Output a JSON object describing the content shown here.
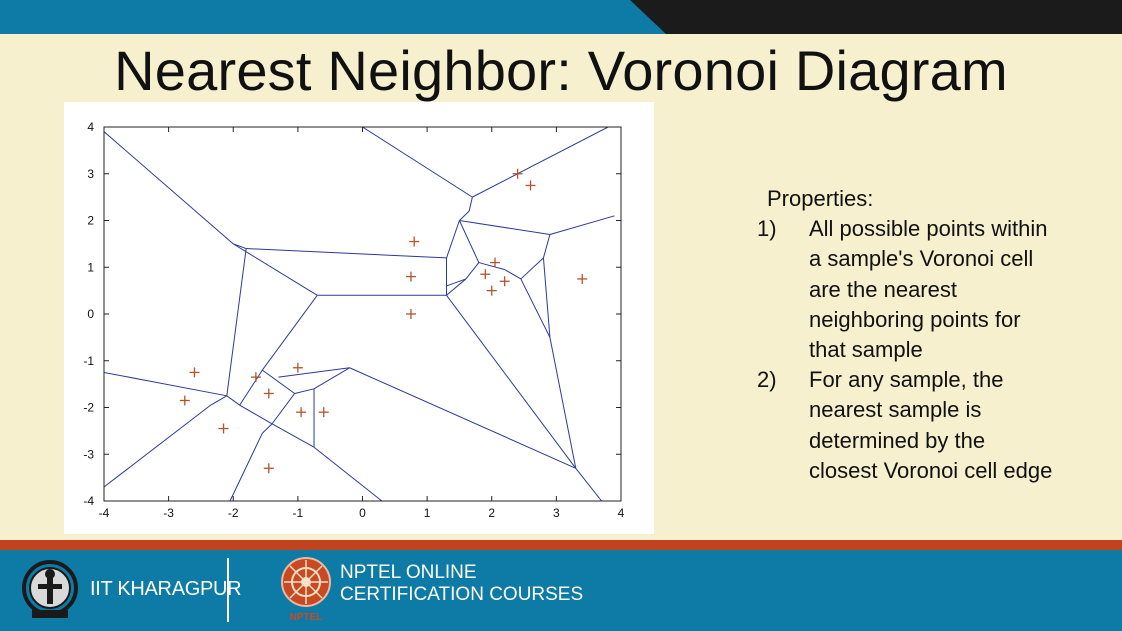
{
  "slide": {
    "title": "Nearest Neighbor: Voronoi Diagram",
    "colors": {
      "top_bar": "#0e7aa6",
      "top_dark": "#1b1b1b",
      "background": "#f6f0cf",
      "bottom_red": "#c0431e",
      "bottom_bar": "#0e7aa6",
      "voronoi_edge": "#2b3a9a",
      "sample_marker": "#b5532a"
    }
  },
  "properties": {
    "heading": "Properties:",
    "items": [
      {
        "num": "1)",
        "text": "All possible points within a sample's Voronoi cell are the nearest neighboring points for that sample"
      },
      {
        "num": "2)",
        "text": "For any sample, the nearest sample is determined by the closest Voronoi cell edge"
      }
    ]
  },
  "footer": {
    "left_label": "IIT KHARAGPUR",
    "right_line1": "NPTEL ONLINE",
    "right_line2": "CERTIFICATION COURSES",
    "right_logo_label": "NPTEL",
    "logo_icons": [
      "iit-kharagpur-emblem-icon",
      "nptel-logo-icon"
    ]
  },
  "chart_data": {
    "type": "scatter",
    "xlim": [
      -4,
      4
    ],
    "ylim": [
      -4,
      4
    ],
    "xticks": [
      "-4",
      "-3",
      "-2",
      "-1",
      "0",
      "1",
      "2",
      "3",
      "4"
    ],
    "yticks": [
      "4",
      "3",
      "2",
      "1",
      "0",
      "-1",
      "-2",
      "-3",
      "-4"
    ],
    "grid": false,
    "marker": "+",
    "points": [
      [
        2.4,
        3.0
      ],
      [
        2.6,
        2.75
      ],
      [
        0.8,
        1.55
      ],
      [
        2.05,
        1.1
      ],
      [
        1.9,
        0.85
      ],
      [
        2.2,
        0.7
      ],
      [
        2.0,
        0.5
      ],
      [
        0.75,
        0.8
      ],
      [
        3.4,
        0.75
      ],
      [
        0.75,
        0.0
      ],
      [
        -2.6,
        -1.25
      ],
      [
        -1.65,
        -1.35
      ],
      [
        -1.0,
        -1.15
      ],
      [
        -2.75,
        -1.85
      ],
      [
        -1.45,
        -1.7
      ],
      [
        -0.95,
        -2.1
      ],
      [
        -0.6,
        -2.1
      ],
      [
        -2.15,
        -2.45
      ],
      [
        -1.45,
        -3.3
      ]
    ],
    "edges": [
      [
        -4.0,
        3.9,
        -2.0,
        1.5
      ],
      [
        -2.0,
        1.5,
        -1.8,
        1.4
      ],
      [
        -1.8,
        1.4,
        1.3,
        1.2
      ],
      [
        -2.0,
        1.5,
        -0.7,
        0.4
      ],
      [
        -0.7,
        0.4,
        1.3,
        0.4
      ],
      [
        1.3,
        0.4,
        1.3,
        1.2
      ],
      [
        1.3,
        1.2,
        1.5,
        2.0
      ],
      [
        1.5,
        2.0,
        1.65,
        2.2
      ],
      [
        1.65,
        2.2,
        1.7,
        2.5
      ],
      [
        1.7,
        2.5,
        0.0,
        4.0
      ],
      [
        1.7,
        2.5,
        3.8,
        4.0
      ],
      [
        1.5,
        2.0,
        2.9,
        1.7
      ],
      [
        2.9,
        1.7,
        3.9,
        2.1
      ],
      [
        2.9,
        1.7,
        2.8,
        1.2
      ],
      [
        2.8,
        1.2,
        2.45,
        0.75
      ],
      [
        2.45,
        0.75,
        2.2,
        0.95
      ],
      [
        2.2,
        0.95,
        1.8,
        1.1
      ],
      [
        1.8,
        1.1,
        1.5,
        2.0
      ],
      [
        1.8,
        1.1,
        1.6,
        0.75
      ],
      [
        1.6,
        0.75,
        1.3,
        0.6
      ],
      [
        2.45,
        0.75,
        2.9,
        -0.5
      ],
      [
        2.8,
        1.2,
        2.9,
        -0.5
      ],
      [
        2.9,
        -0.5,
        3.3,
        -3.3
      ],
      [
        1.3,
        0.4,
        1.6,
        0.75
      ],
      [
        1.3,
        0.4,
        3.3,
        -3.3
      ],
      [
        3.3,
        -3.3,
        3.7,
        -4.0
      ],
      [
        -1.8,
        1.4,
        -2.1,
        -1.75
      ],
      [
        -4.0,
        -1.25,
        -2.1,
        -1.75
      ],
      [
        -2.1,
        -1.75,
        -1.9,
        -1.95
      ],
      [
        -2.1,
        -1.75,
        -2.35,
        -1.95
      ],
      [
        -2.35,
        -1.95,
        -4.0,
        -3.7
      ],
      [
        -1.9,
        -1.95,
        -1.4,
        -2.35
      ],
      [
        -1.4,
        -2.35,
        -1.55,
        -2.55
      ],
      [
        -1.55,
        -2.55,
        -2.05,
        -4.0
      ],
      [
        -1.4,
        -2.35,
        -0.75,
        -2.85
      ],
      [
        -0.75,
        -2.85,
        -0.75,
        -1.6
      ],
      [
        -0.75,
        -1.6,
        -1.05,
        -1.7
      ],
      [
        -1.05,
        -1.7,
        -1.55,
        -1.2
      ],
      [
        -1.55,
        -1.2,
        -1.9,
        -1.95
      ],
      [
        -1.55,
        -1.2,
        -0.7,
        0.4
      ],
      [
        -0.75,
        -1.6,
        -0.2,
        -1.15
      ],
      [
        -0.2,
        -1.15,
        3.3,
        -3.3
      ],
      [
        -0.2,
        -1.15,
        -1.3,
        -1.35
      ],
      [
        -1.05,
        -1.7,
        -1.4,
        -2.35
      ],
      [
        -0.75,
        -2.85,
        0.3,
        -4.0
      ]
    ]
  }
}
